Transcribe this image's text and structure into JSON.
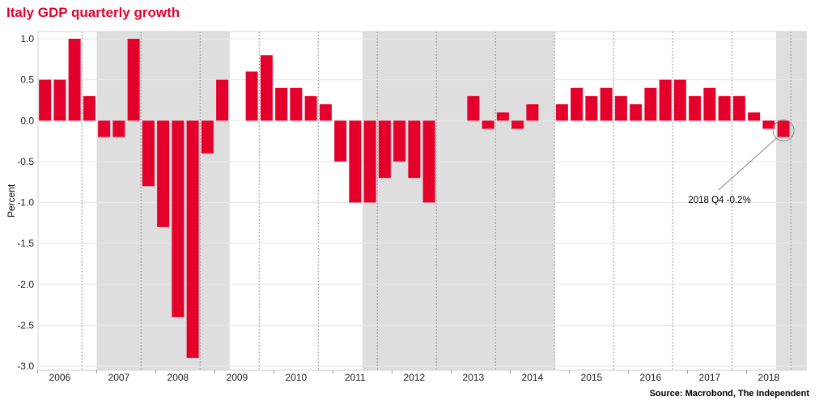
{
  "title": "Italy GDP quarterly growth",
  "source": "Source: Macrobond, The Independent",
  "colors": {
    "bar": "#e4002b",
    "recession": "#dedede",
    "title": "#e4002b"
  },
  "chart_data": {
    "type": "bar",
    "ylabel": "Percent",
    "ylim": [
      -3.0,
      1.0
    ],
    "yticks": [
      "1.0",
      "0.5",
      "0.0",
      "-0.5",
      "-1.0",
      "-1.5",
      "-2.0",
      "-2.5",
      "-3.0"
    ],
    "ytick_values": [
      1.0,
      0.5,
      0.0,
      -0.5,
      -1.0,
      -1.5,
      -2.0,
      -2.5,
      -3.0
    ],
    "years": [
      "2006",
      "2007",
      "2008",
      "2009",
      "2010",
      "2011",
      "2012",
      "2013",
      "2014",
      "2015",
      "2016",
      "2017",
      "2018"
    ],
    "grid": true,
    "recession_shading": [
      [
        "2007 Q1",
        "2009 Q1"
      ],
      [
        "2011 Q3",
        "2014 Q3"
      ],
      [
        "2018 Q3",
        "2018 Q4"
      ]
    ],
    "values": [
      0.5,
      0.5,
      1.0,
      0.3,
      -0.2,
      -0.2,
      1.0,
      -0.8,
      -1.3,
      -2.4,
      -2.9,
      -0.4,
      0.5,
      null,
      0.6,
      0.8,
      0.4,
      0.4,
      0.3,
      0.2,
      -0.5,
      -1.0,
      -1.0,
      -0.7,
      -0.5,
      -0.7,
      -1.0,
      null,
      null,
      0.3,
      -0.1,
      0.1,
      -0.1,
      0.2,
      null,
      0.2,
      0.4,
      0.3,
      0.4,
      0.3,
      0.2,
      0.4,
      0.5,
      0.5,
      0.3,
      0.4,
      0.3,
      0.3,
      0.1,
      -0.1,
      -0.2
    ],
    "annotation": {
      "text": "2018 Q4 -0.2%",
      "target_index": 50
    }
  }
}
